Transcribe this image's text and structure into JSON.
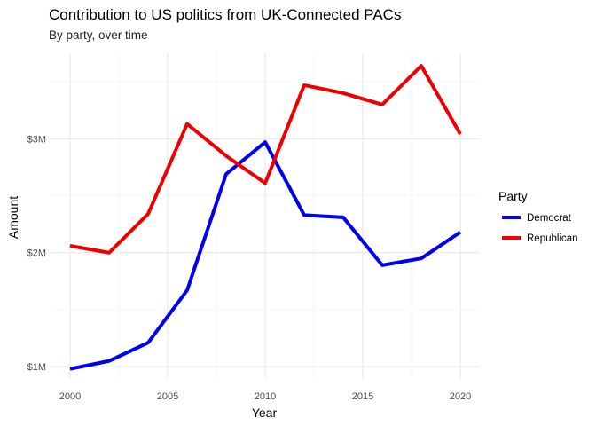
{
  "chart_data": {
    "type": "line",
    "title": "Contribution to US politics from UK-Connected PACs",
    "subtitle": "By party, over time",
    "xlabel": "Year",
    "ylabel": "Amount",
    "x": [
      2000,
      2002,
      2004,
      2006,
      2008,
      2010,
      2012,
      2014,
      2016,
      2018,
      2020
    ],
    "xlim": [
      1999,
      2021
    ],
    "ylim": [
      900000,
      3750000
    ],
    "xticks": [
      2000,
      2005,
      2010,
      2015,
      2020
    ],
    "xtick_labels": [
      "2000",
      "2005",
      "2010",
      "2015",
      "2020"
    ],
    "yticks": [
      1000000,
      2000000,
      3000000
    ],
    "ytick_labels": [
      "$1M",
      "$2M",
      "$3M"
    ],
    "grid": true,
    "legend": {
      "title": "Party",
      "position": "right"
    },
    "series": [
      {
        "name": "Democrat",
        "color": "#0000ee",
        "values": [
          980000,
          1050000,
          1210000,
          1670000,
          2690000,
          2970000,
          2330000,
          2310000,
          1890000,
          1950000,
          2180000
        ]
      },
      {
        "name": "Republican",
        "color": "#ee0000",
        "values": [
          2060000,
          2000000,
          2340000,
          3130000,
          2850000,
          2610000,
          3470000,
          3400000,
          3300000,
          3640000,
          3040000
        ]
      }
    ]
  }
}
